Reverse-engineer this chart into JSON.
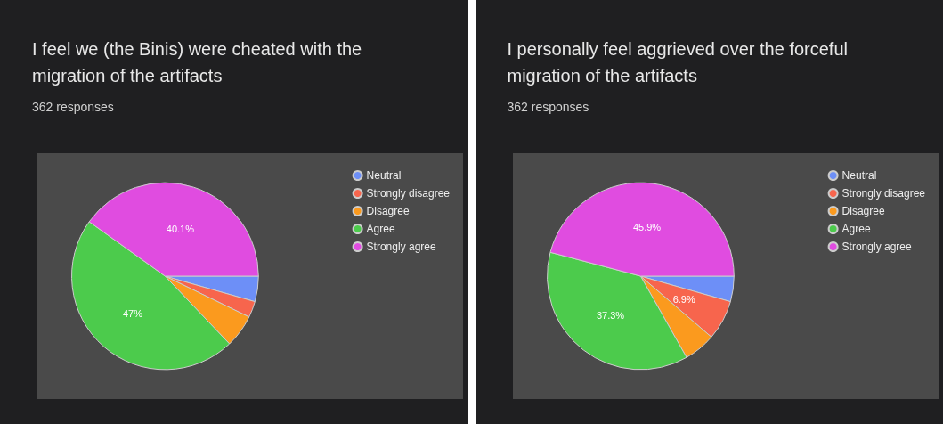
{
  "chart_data": [
    {
      "type": "pie",
      "title": "I feel we (the Binis) were cheated with the migration of the artifacts",
      "subtitle": "362 responses",
      "categories": [
        "Neutral",
        "Strongly disagree",
        "Disagree",
        "Agree",
        "Strongly agree"
      ],
      "values": [
        4.4,
        2.8,
        5.7,
        47,
        40.1
      ],
      "value_labels": [
        null,
        null,
        null,
        "47%",
        "40.1%"
      ],
      "colors": [
        "#6d8ff7",
        "#f7654d",
        "#fb9a1e",
        "#4ccb4c",
        "#e04ce0"
      ],
      "legend": "top right"
    },
    {
      "type": "pie",
      "title": "I personally feel aggrieved over the forceful migration of the artifacts",
      "subtitle": "362 responses",
      "categories": [
        "Neutral",
        "Strongly disagree",
        "Disagree",
        "Agree",
        "Strongly agree"
      ],
      "values": [
        4.4,
        6.9,
        5.5,
        37.3,
        45.9
      ],
      "value_labels": [
        null,
        "6.9%",
        null,
        "37.3%",
        "45.9%"
      ],
      "colors": [
        "#6d8ff7",
        "#f7654d",
        "#fb9a1e",
        "#4ccb4c",
        "#e04ce0"
      ],
      "legend": "top right"
    }
  ]
}
